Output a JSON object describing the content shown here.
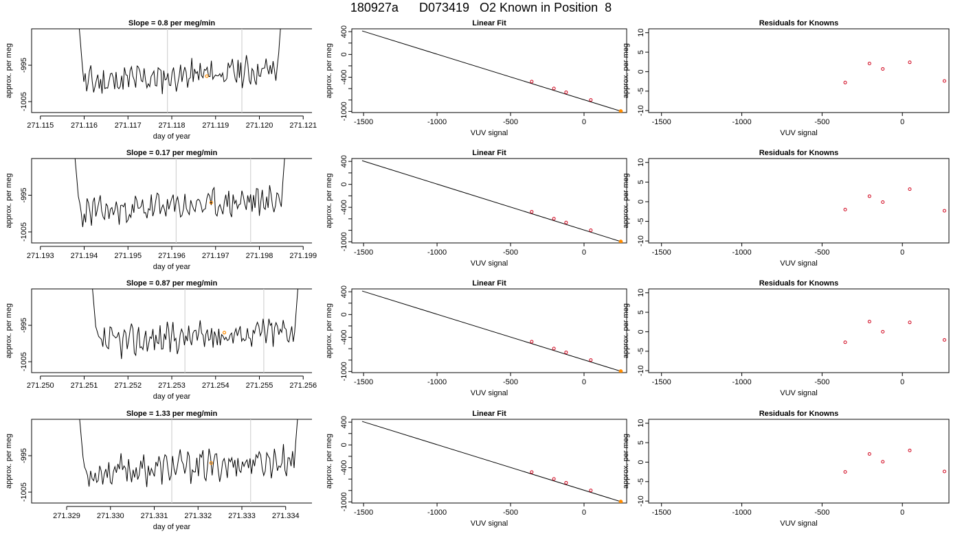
{
  "page_title": "180927a      D073419   O2 Known in Position  8",
  "colors": {
    "trace": "#000000",
    "vertical_markers": "#d3d3d3",
    "highlight_point": "#ff8c00",
    "residual_points": "#d0021b",
    "fit_line": "#000000"
  },
  "chart_data": [
    {
      "panel": "row1-timeseries",
      "type": "line",
      "title": "Slope =  0.8  per meg/min",
      "xlabel": "day of year",
      "ylabel": "approx. per meg",
      "xlim": [
        271.1148,
        271.1212
      ],
      "ylim": [
        -1008,
        -985
      ],
      "xticks": [
        271.115,
        271.116,
        271.117,
        271.118,
        271.119,
        271.12,
        271.121
      ],
      "xtick_labels": [
        "271.115",
        "271.116",
        "271.117",
        "271.118",
        "271.119",
        "271.120",
        "271.121"
      ],
      "yticks": [
        -1005,
        -995
      ],
      "ytick_labels": [
        "-1005",
        "-995"
      ],
      "x_start": 271.1158,
      "x_end": 271.1206,
      "vertical_lines": [
        271.1179,
        271.1196
      ],
      "highlight_point": [
        271.1188,
        -998
      ],
      "seed": 11
    },
    {
      "panel": "row1-linear-fit",
      "type": "scatter",
      "title": "Linear Fit",
      "xlabel": "VUV signal",
      "ylabel": "approx. per meg",
      "xlim": [
        -1580,
        290
      ],
      "ylim": [
        -1020,
        450
      ],
      "xticks": [
        -1500,
        -1000,
        -500,
        0
      ],
      "xtick_labels": [
        "-1500",
        "-1000",
        "-500",
        "0"
      ],
      "yticks": [
        400,
        0,
        -400,
        -1000
      ],
      "ytick_labels": [
        "400",
        "0",
        "-400",
        "-1000"
      ],
      "minor_yticks": [
        200,
        -200,
        -600,
        -800
      ],
      "fit_line": [
        [
          -1510,
          413
        ],
        [
          250,
          -996
        ]
      ],
      "points": [
        [
          -356,
          -477
        ],
        [
          -205,
          -597
        ],
        [
          -122,
          -664
        ],
        [
          46,
          -799
        ],
        [
          250,
          -996
        ]
      ],
      "highlight_point": [
        250,
        -996
      ]
    },
    {
      "panel": "row1-residuals",
      "type": "scatter",
      "title": "Residuals for Knowns",
      "xlabel": "VUV signal",
      "ylabel": "approx. per meg",
      "xlim": [
        -1580,
        290
      ],
      "ylim": [
        -10.5,
        11
      ],
      "xticks": [
        -1500,
        -1000,
        -500,
        0
      ],
      "xtick_labels": [
        "-1500",
        "-1000",
        "-500",
        "0"
      ],
      "yticks": [
        10,
        5,
        0,
        -5,
        -10
      ],
      "ytick_labels": [
        "10",
        "5",
        "0",
        "-5",
        "-10"
      ],
      "points": [
        [
          -356,
          -2.8
        ],
        [
          -205,
          2.1
        ],
        [
          -122,
          0.7
        ],
        [
          46,
          2.4
        ],
        [
          262,
          -2.4
        ]
      ]
    },
    {
      "panel": "row2-timeseries",
      "type": "line",
      "title": "Slope =  0.17  per meg/min",
      "xlabel": "day of year",
      "ylabel": "approx. per meg",
      "xlim": [
        271.1928,
        271.1992
      ],
      "ylim": [
        -1008,
        -985
      ],
      "xticks": [
        271.193,
        271.194,
        271.195,
        271.196,
        271.197,
        271.198,
        271.199
      ],
      "xtick_labels": [
        "271.193",
        "271.194",
        "271.195",
        "271.196",
        "271.197",
        "271.198",
        "271.199"
      ],
      "yticks": [
        -1005,
        -995
      ],
      "ytick_labels": [
        "-1005",
        "-995"
      ],
      "x_start": 271.1937,
      "x_end": 271.1987,
      "vertical_lines": [
        271.1961,
        271.1978
      ],
      "highlight_point": [
        271.1969,
        -997
      ],
      "seed": 23
    },
    {
      "panel": "row2-linear-fit",
      "type": "scatter",
      "title": "Linear Fit",
      "xlabel": "VUV signal",
      "ylabel": "approx. per meg",
      "xlim": [
        -1580,
        290
      ],
      "ylim": [
        -1020,
        450
      ],
      "xticks": [
        -1500,
        -1000,
        -500,
        0
      ],
      "xtick_labels": [
        "-1500",
        "-1000",
        "-500",
        "0"
      ],
      "yticks": [
        400,
        0,
        -400,
        -1000
      ],
      "ytick_labels": [
        "400",
        "0",
        "-400",
        "-1000"
      ],
      "minor_yticks": [
        200,
        -200,
        -600,
        -800
      ],
      "fit_line": [
        [
          -1510,
          413
        ],
        [
          250,
          -996
        ]
      ],
      "points": [
        [
          -356,
          -477
        ],
        [
          -205,
          -597
        ],
        [
          -122,
          -664
        ],
        [
          46,
          -799
        ],
        [
          250,
          -996
        ]
      ],
      "highlight_point": [
        250,
        -996
      ]
    },
    {
      "panel": "row2-residuals",
      "type": "scatter",
      "title": "Residuals for Knowns",
      "xlabel": "VUV signal",
      "ylabel": "approx. per meg",
      "xlim": [
        -1580,
        290
      ],
      "ylim": [
        -10.5,
        11
      ],
      "xticks": [
        -1500,
        -1000,
        -500,
        0
      ],
      "xtick_labels": [
        "-1500",
        "-1000",
        "-500",
        "0"
      ],
      "yticks": [
        10,
        5,
        0,
        -5,
        -10
      ],
      "ytick_labels": [
        "10",
        "5",
        "0",
        "-5",
        "-10"
      ],
      "points": [
        [
          -356,
          -2.0
        ],
        [
          -205,
          1.4
        ],
        [
          -122,
          -0.1
        ],
        [
          46,
          3.2
        ],
        [
          262,
          -2.3
        ]
      ]
    },
    {
      "panel": "row3-timeseries",
      "type": "line",
      "title": "Slope =  0.87  per meg/min",
      "xlabel": "day of year",
      "ylabel": "approx. per meg",
      "xlim": [
        271.2498,
        271.2562
      ],
      "ylim": [
        -1008,
        -985
      ],
      "xticks": [
        271.25,
        271.251,
        271.252,
        271.253,
        271.254,
        271.255,
        271.256
      ],
      "xtick_labels": [
        "271.250",
        "271.251",
        "271.252",
        "271.253",
        "271.254",
        "271.255",
        "271.256"
      ],
      "yticks": [
        -1005,
        -995
      ],
      "ytick_labels": [
        "-1005",
        "-995"
      ],
      "x_start": 271.2511,
      "x_end": 271.256,
      "vertical_lines": [
        271.2533,
        271.2551
      ],
      "highlight_point": [
        271.2542,
        -997
      ],
      "seed": 37
    },
    {
      "panel": "row3-linear-fit",
      "type": "scatter",
      "title": "Linear Fit",
      "xlabel": "VUV signal",
      "ylabel": "approx. per meg",
      "xlim": [
        -1580,
        290
      ],
      "ylim": [
        -1020,
        450
      ],
      "xticks": [
        -1500,
        -1000,
        -500,
        0
      ],
      "xtick_labels": [
        "-1500",
        "-1000",
        "-500",
        "0"
      ],
      "yticks": [
        400,
        0,
        -400,
        -1000
      ],
      "ytick_labels": [
        "400",
        "0",
        "-400",
        "-1000"
      ],
      "minor_yticks": [
        200,
        -200,
        -600,
        -800
      ],
      "fit_line": [
        [
          -1510,
          413
        ],
        [
          250,
          -996
        ]
      ],
      "points": [
        [
          -356,
          -477
        ],
        [
          -205,
          -597
        ],
        [
          -122,
          -664
        ],
        [
          46,
          -799
        ],
        [
          250,
          -996
        ]
      ],
      "highlight_point": [
        250,
        -996
      ]
    },
    {
      "panel": "row3-residuals",
      "type": "scatter",
      "title": "Residuals for Knowns",
      "xlabel": "VUV signal",
      "ylabel": "approx. per meg",
      "xlim": [
        -1580,
        290
      ],
      "ylim": [
        -10.5,
        11
      ],
      "xticks": [
        -1500,
        -1000,
        -500,
        0
      ],
      "xtick_labels": [
        "-1500",
        "-1000",
        "-500",
        "0"
      ],
      "yticks": [
        10,
        5,
        0,
        -5,
        -10
      ],
      "ytick_labels": [
        "10",
        "5",
        "0",
        "-5",
        "-10"
      ],
      "points": [
        [
          -356,
          -2.7
        ],
        [
          -205,
          2.6
        ],
        [
          -122,
          0.0
        ],
        [
          46,
          2.4
        ],
        [
          262,
          -2.1
        ]
      ]
    },
    {
      "panel": "row4-timeseries",
      "type": "line",
      "title": "Slope =  1.33  per meg/min",
      "xlabel": "day of year",
      "ylabel": "approx. per meg",
      "xlim": [
        271.3282,
        271.3346
      ],
      "ylim": [
        -1008,
        -985
      ],
      "xticks": [
        271.329,
        271.33,
        271.331,
        271.332,
        271.333,
        271.334
      ],
      "xtick_labels": [
        "271.329",
        "271.330",
        "271.331",
        "271.332",
        "271.333",
        "271.334"
      ],
      "yticks": [
        -1005,
        -995
      ],
      "ytick_labels": [
        "-1005",
        "-995"
      ],
      "x_start": 271.3292,
      "x_end": 271.3344,
      "vertical_lines": [
        271.3314,
        271.3332
      ],
      "highlight_point": [
        271.3323,
        -997
      ],
      "seed": 53
    },
    {
      "panel": "row4-linear-fit",
      "type": "scatter",
      "title": "Linear Fit",
      "xlabel": "VUV signal",
      "ylabel": "approx. per meg",
      "xlim": [
        -1580,
        290
      ],
      "ylim": [
        -1020,
        450
      ],
      "xticks": [
        -1500,
        -1000,
        -500,
        0
      ],
      "xtick_labels": [
        "-1500",
        "-1000",
        "-500",
        "0"
      ],
      "yticks": [
        400,
        0,
        -400,
        -1000
      ],
      "ytick_labels": [
        "400",
        "0",
        "-400",
        "-1000"
      ],
      "minor_yticks": [
        200,
        -200,
        -600,
        -800
      ],
      "fit_line": [
        [
          -1510,
          413
        ],
        [
          250,
          -996
        ]
      ],
      "points": [
        [
          -356,
          -477
        ],
        [
          -205,
          -597
        ],
        [
          -122,
          -664
        ],
        [
          46,
          -799
        ],
        [
          250,
          -996
        ]
      ],
      "highlight_point": [
        250,
        -996
      ]
    },
    {
      "panel": "row4-residuals",
      "type": "scatter",
      "title": "Residuals for Knowns",
      "xlabel": "VUV signal",
      "ylabel": "approx. per meg",
      "xlim": [
        -1580,
        290
      ],
      "ylim": [
        -10.5,
        11
      ],
      "xticks": [
        -1500,
        -1000,
        -500,
        0
      ],
      "xtick_labels": [
        "-1500",
        "-1000",
        "-500",
        "0"
      ],
      "yticks": [
        10,
        5,
        0,
        -5,
        -10
      ],
      "ytick_labels": [
        "10",
        "5",
        "0",
        "-5",
        "-10"
      ],
      "points": [
        [
          -356,
          -2.5
        ],
        [
          -205,
          2.1
        ],
        [
          -122,
          0.1
        ],
        [
          46,
          3.0
        ],
        [
          262,
          -2.4
        ]
      ]
    }
  ]
}
